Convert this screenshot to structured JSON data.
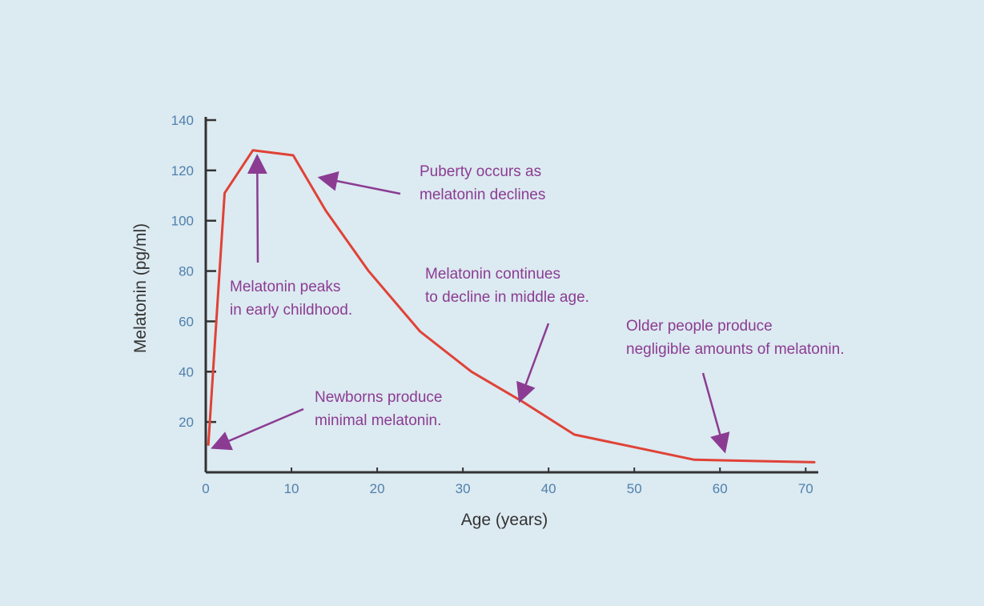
{
  "colors": {
    "background": "#dceaf1",
    "line": "#e04237",
    "annotation": "#8b3c92",
    "tick_label": "#4f80ad",
    "axis": "#333333"
  },
  "chart_data": {
    "type": "line",
    "title": "",
    "xlabel": "Age (years)",
    "ylabel": "Melatonin (pg/ml)",
    "xlim": [
      0,
      71
    ],
    "ylim": [
      0,
      140
    ],
    "grid": false,
    "legend": "none",
    "x_ticks": [
      0,
      10,
      20,
      30,
      40,
      50,
      60,
      70
    ],
    "y_ticks": [
      20,
      40,
      60,
      80,
      100,
      120,
      140
    ],
    "x_tick_labels": [
      "0",
      "10",
      "20",
      "30",
      "40",
      "50",
      "60",
      "70"
    ],
    "y_tick_labels": [
      "20",
      "40",
      "60",
      "80",
      "100",
      "120",
      "140"
    ],
    "series": [
      {
        "x": [
          0.3,
          2.2,
          5.5,
          10.2,
          14,
          19,
          25,
          31,
          37,
          43,
          50,
          57,
          64,
          71
        ],
        "y": [
          11,
          111,
          128,
          126,
          104,
          80,
          56,
          40,
          28,
          15,
          10,
          5,
          4.5,
          4
        ]
      }
    ],
    "annotations": [
      {
        "name": "peak-childhood",
        "lines": [
          "Melatonin peaks",
          "in early childhood."
        ],
        "arrow_to": [
          6,
          125
        ]
      },
      {
        "name": "puberty",
        "lines": [
          "Puberty occurs as",
          "melatonin declines"
        ],
        "arrow_to": [
          13.5,
          117
        ]
      },
      {
        "name": "middle-age",
        "lines": [
          "Melatonin continues",
          "to decline in middle age."
        ],
        "arrow_to": [
          36.7,
          29
        ]
      },
      {
        "name": "older-people",
        "lines": [
          "Older people produce",
          "negligible amounts of melatonin."
        ],
        "arrow_to": [
          60.5,
          9
        ]
      },
      {
        "name": "newborns",
        "lines": [
          "Newborns produce",
          "minimal melatonin."
        ],
        "arrow_to": [
          1,
          10
        ]
      }
    ]
  }
}
